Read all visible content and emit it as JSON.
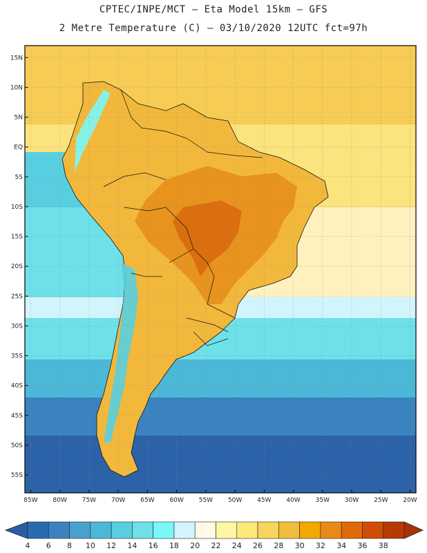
{
  "header": {
    "line1": "CPTEC/INPE/MCT –  Eta Model 15km – GFS",
    "line2": "2 Metre Temperature (C) – 03/10/2020 12UTC fct=97h"
  },
  "map": {
    "variable": "2 Metre Temperature",
    "units": "C",
    "lat_labels": [
      "15N",
      "10N",
      "5N",
      "EQ",
      "5S",
      "10S",
      "15S",
      "20S",
      "25S",
      "30S",
      "35S",
      "40S",
      "45S",
      "50S",
      "55S"
    ],
    "lat_values": [
      15,
      10,
      5,
      0,
      -5,
      -10,
      -15,
      -20,
      -25,
      -30,
      -35,
      -40,
      -45,
      -50,
      -55
    ],
    "lon_labels": [
      "85W",
      "80W",
      "75W",
      "70W",
      "65W",
      "60W",
      "55W",
      "50W",
      "45W",
      "40W",
      "35W",
      "30W",
      "25W",
      "20W"
    ],
    "lon_values": [
      -85,
      -80,
      -75,
      -70,
      -65,
      -60,
      -55,
      -50,
      -45,
      -40,
      -35,
      -30,
      -25,
      -20
    ],
    "lat_range": [
      -58,
      17
    ],
    "lon_range": [
      -86,
      -19
    ]
  },
  "colorbar": {
    "labels": [
      "4",
      "6",
      "8",
      "10",
      "12",
      "14",
      "16",
      "18",
      "20",
      "22",
      "24",
      "26",
      "28",
      "30",
      "32",
      "34",
      "36",
      "38"
    ],
    "colors": [
      "#2a6bb0",
      "#3a83c0",
      "#4aa0cc",
      "#4cb8d8",
      "#58cfe0",
      "#6ee0ea",
      "#7af8f8",
      "#d2f4fc",
      "#fff9e6",
      "#fff6a3",
      "#fde87a",
      "#f7d45c",
      "#f0be3c",
      "#f2a800",
      "#ea8a14",
      "#df6a0a",
      "#cf4d06",
      "#b53a06"
    ],
    "low_arrow_color": "#2a5da6",
    "high_arrow_color": "#a83206"
  },
  "colors": {
    "ocean_tropical": "#f6d050",
    "ocean_mid": "#48c8dc",
    "ocean_south": "#2c62a8",
    "land_hot": "#e6901c",
    "land_warm": "#f2b83c"
  }
}
